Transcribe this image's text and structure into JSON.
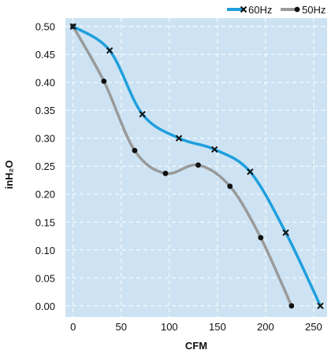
{
  "chart_data": {
    "type": "line",
    "title": "",
    "xlabel": "CFM",
    "ylabel": "inH₂O",
    "xlim": [
      -8,
      264
    ],
    "ylim": [
      -0.02,
      0.515
    ],
    "xticks": [
      0,
      50,
      100,
      150,
      200,
      250
    ],
    "yticks": [
      0.0,
      0.05,
      0.1,
      0.15,
      0.2,
      0.25,
      0.3,
      0.35,
      0.4,
      0.45,
      0.5
    ],
    "xtick_labels": [
      "0",
      "50",
      "100",
      "150",
      "200",
      "250"
    ],
    "ytick_labels": [
      "0.00",
      "0.05",
      "0.10",
      "0.15",
      "0.20",
      "0.25",
      "0.30",
      "0.35",
      "0.40",
      "0.45",
      "0.50"
    ],
    "grid": true,
    "legend_position": "top-right",
    "background_color": "#cde3f3",
    "series": [
      {
        "name": "60Hz",
        "color": "#1f9fdc",
        "marker": "x",
        "x": [
          0,
          38,
          72,
          110,
          147,
          184,
          221,
          257
        ],
        "y": [
          0.5,
          0.457,
          0.343,
          0.3,
          0.28,
          0.24,
          0.131,
          0.0
        ]
      },
      {
        "name": "50Hz",
        "color": "#9a9a9a",
        "marker": "circle",
        "x": [
          0,
          32,
          64,
          96,
          130,
          163,
          195,
          227
        ],
        "y": [
          0.5,
          0.402,
          0.278,
          0.237,
          0.252,
          0.214,
          0.122,
          0.0
        ]
      }
    ]
  }
}
